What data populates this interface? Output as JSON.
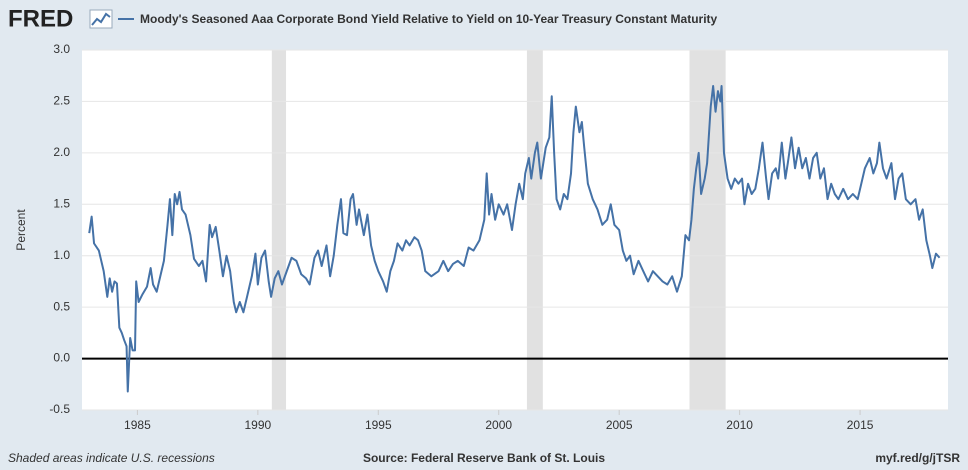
{
  "logo": "FRED",
  "chart_data": {
    "type": "line",
    "series": [
      {
        "name": "Moody's Seasoned Aaa Corporate Bond Yield Relative to Yield on 10-Year Treasury Constant Maturity",
        "color": "#4572a7",
        "values": [
          1.22,
          1.38,
          1.12,
          1.05,
          0.85,
          0.6,
          0.78,
          0.65,
          0.75,
          0.73,
          0.3,
          0.25,
          0.18,
          0.12,
          -0.32,
          0.2,
          0.08,
          0.08,
          0.75,
          0.55,
          0.62,
          0.7,
          0.88,
          0.72,
          0.65,
          0.8,
          0.95,
          1.3,
          1.55,
          1.2,
          1.6,
          1.5,
          1.62,
          1.45,
          1.4,
          1.2,
          0.97,
          0.9,
          0.95,
          0.75,
          1.3,
          1.18,
          1.28,
          1.05,
          0.8,
          1.0,
          0.85,
          0.55,
          0.45,
          0.55,
          0.45,
          0.6,
          0.8,
          1.02,
          0.72,
          0.98,
          1.05,
          0.75,
          0.6,
          0.78,
          0.85,
          0.72,
          0.85,
          0.98,
          0.95,
          0.82,
          0.78,
          0.72,
          0.98,
          1.05,
          0.9,
          1.1,
          0.8,
          1.0,
          1.3,
          1.55,
          1.22,
          1.2,
          1.55,
          1.6,
          1.3,
          1.45,
          1.2,
          1.4,
          1.1,
          0.95,
          0.85,
          0.75,
          0.65,
          0.85,
          0.95,
          1.12,
          1.05,
          1.15,
          1.1,
          1.18,
          1.15,
          1.05,
          0.85,
          0.8,
          0.85,
          0.95,
          0.85,
          0.92,
          0.95,
          0.9,
          1.08,
          1.05,
          1.15,
          1.35,
          1.8,
          1.4,
          1.6,
          1.35,
          1.5,
          1.4,
          1.5,
          1.25,
          1.5,
          1.7,
          1.55,
          1.8,
          1.95,
          1.75,
          2.0,
          2.1,
          1.75,
          2.05,
          2.15,
          2.55,
          2.0,
          1.55,
          1.45,
          1.6,
          1.55,
          1.8,
          2.2,
          2.45,
          2.2,
          2.3,
          2.05,
          1.7,
          1.55,
          1.45,
          1.3,
          1.35,
          1.5,
          1.3,
          1.25,
          1.05,
          0.95,
          1.0,
          0.82,
          0.95,
          0.85,
          0.75,
          0.85,
          0.8,
          0.75,
          0.72,
          0.8,
          0.65,
          0.8,
          1.2,
          1.15,
          1.35,
          1.65,
          1.85,
          2.0,
          1.6,
          1.75,
          1.9,
          2.45,
          2.65,
          2.4,
          2.6,
          2.5,
          2.65,
          2.0,
          1.75,
          1.65,
          1.75,
          1.7,
          1.75,
          1.5,
          1.7,
          1.6,
          1.65,
          1.85,
          2.1,
          1.75,
          1.55,
          1.8,
          1.85,
          1.75,
          2.1,
          1.75,
          1.9,
          2.15,
          1.85,
          2.05,
          1.85,
          1.95,
          1.75,
          1.95,
          2.0,
          1.75,
          1.85,
          1.55,
          1.7,
          1.6,
          1.55,
          1.65,
          1.55,
          1.6,
          1.55,
          1.7,
          1.85,
          1.95,
          1.8,
          1.9,
          2.1,
          1.85,
          1.75,
          1.9,
          1.55,
          1.75,
          1.8,
          1.55,
          1.5,
          1.55,
          1.35,
          1.45,
          1.15,
          1.0,
          0.88,
          1.02,
          0.98
        ]
      }
    ],
    "x": [
      1983.0,
      1983.1,
      1983.2,
      1983.4,
      1983.6,
      1983.75,
      1983.85,
      1983.95,
      1984.05,
      1984.15,
      1984.25,
      1984.35,
      1984.45,
      1984.55,
      1984.6,
      1984.7,
      1984.8,
      1984.9,
      1984.95,
      1985.05,
      1985.2,
      1985.4,
      1985.55,
      1985.65,
      1985.8,
      1985.95,
      1986.1,
      1986.25,
      1986.35,
      1986.45,
      1986.55,
      1986.65,
      1986.75,
      1986.85,
      1987.0,
      1987.2,
      1987.35,
      1987.55,
      1987.7,
      1987.85,
      1988.0,
      1988.1,
      1988.25,
      1988.4,
      1988.55,
      1988.7,
      1988.85,
      1989.0,
      1989.1,
      1989.25,
      1989.4,
      1989.55,
      1989.75,
      1989.9,
      1990.0,
      1990.15,
      1990.3,
      1990.45,
      1990.55,
      1990.7,
      1990.85,
      1991.0,
      1991.2,
      1991.4,
      1991.6,
      1991.8,
      1992.0,
      1992.15,
      1992.35,
      1992.5,
      1992.65,
      1992.85,
      1993.0,
      1993.15,
      1993.3,
      1993.45,
      1993.55,
      1993.7,
      1993.85,
      1993.95,
      1994.1,
      1994.2,
      1994.4,
      1994.55,
      1994.7,
      1994.85,
      1995.0,
      1995.2,
      1995.35,
      1995.5,
      1995.65,
      1995.8,
      1996.0,
      1996.15,
      1996.3,
      1996.5,
      1996.65,
      1996.8,
      1996.95,
      1997.2,
      1997.5,
      1997.7,
      1997.9,
      1998.1,
      1998.3,
      1998.55,
      1998.75,
      1998.95,
      1999.2,
      1999.4,
      1999.5,
      1999.6,
      1999.7,
      1999.85,
      2000.0,
      2000.2,
      2000.35,
      2000.55,
      2000.7,
      2000.85,
      2001.0,
      2001.1,
      2001.25,
      2001.35,
      2001.5,
      2001.6,
      2001.75,
      2001.95,
      2002.1,
      2002.2,
      2002.3,
      2002.4,
      2002.55,
      2002.7,
      2002.85,
      2003.0,
      2003.1,
      2003.2,
      2003.35,
      2003.45,
      2003.55,
      2003.7,
      2003.9,
      2004.1,
      2004.3,
      2004.5,
      2004.65,
      2004.8,
      2005.0,
      2005.15,
      2005.3,
      2005.45,
      2005.6,
      2005.8,
      2006.0,
      2006.2,
      2006.4,
      2006.6,
      2006.8,
      2007.0,
      2007.2,
      2007.4,
      2007.6,
      2007.75,
      2007.9,
      2008.0,
      2008.1,
      2008.2,
      2008.3,
      2008.4,
      2008.55,
      2008.65,
      2008.8,
      2008.9,
      2009.0,
      2009.1,
      2009.2,
      2009.25,
      2009.35,
      2009.5,
      2009.65,
      2009.8,
      2009.95,
      2010.1,
      2010.2,
      2010.35,
      2010.5,
      2010.65,
      2010.8,
      2010.95,
      2011.1,
      2011.2,
      2011.35,
      2011.5,
      2011.6,
      2011.75,
      2011.9,
      2012.0,
      2012.15,
      2012.3,
      2012.45,
      2012.6,
      2012.75,
      2012.9,
      2013.05,
      2013.2,
      2013.35,
      2013.5,
      2013.65,
      2013.8,
      2013.95,
      2014.1,
      2014.3,
      2014.5,
      2014.7,
      2014.9,
      2015.05,
      2015.2,
      2015.4,
      2015.55,
      2015.7,
      2015.8,
      2015.95,
      2016.1,
      2016.3,
      2016.45,
      2016.6,
      2016.75,
      2016.9,
      2017.1,
      2017.3,
      2017.45,
      2017.6,
      2017.75,
      2017.9,
      2018.0,
      2018.15,
      2018.3
    ],
    "xlim": [
      1982.7,
      2018.65
    ],
    "xticks": [
      1985,
      1990,
      1995,
      2000,
      2005,
      2010,
      2015
    ],
    "ylim": [
      -0.5,
      3
    ],
    "yticks": [
      -0.5,
      {
        "value": 0,
        "label": "0.0"
      },
      0.5,
      {
        "value": 1,
        "label": "1.0"
      },
      1.5,
      {
        "value": 2,
        "label": "2.0"
      },
      2.5,
      {
        "value": 3,
        "label": "3.0"
      }
    ],
    "ylabel": "Percent",
    "grid": true,
    "zero_line": true,
    "recessions": [
      [
        1990.58,
        1991.17
      ],
      [
        2001.17,
        2001.83
      ],
      [
        2007.92,
        2009.42
      ]
    ],
    "recession_color": "#e1e1e1",
    "note": "Shaded areas indicate U.S. recessions",
    "source": "Source: Federal Reserve Bank of St. Louis",
    "link": "myf.red/g/jTSR"
  }
}
